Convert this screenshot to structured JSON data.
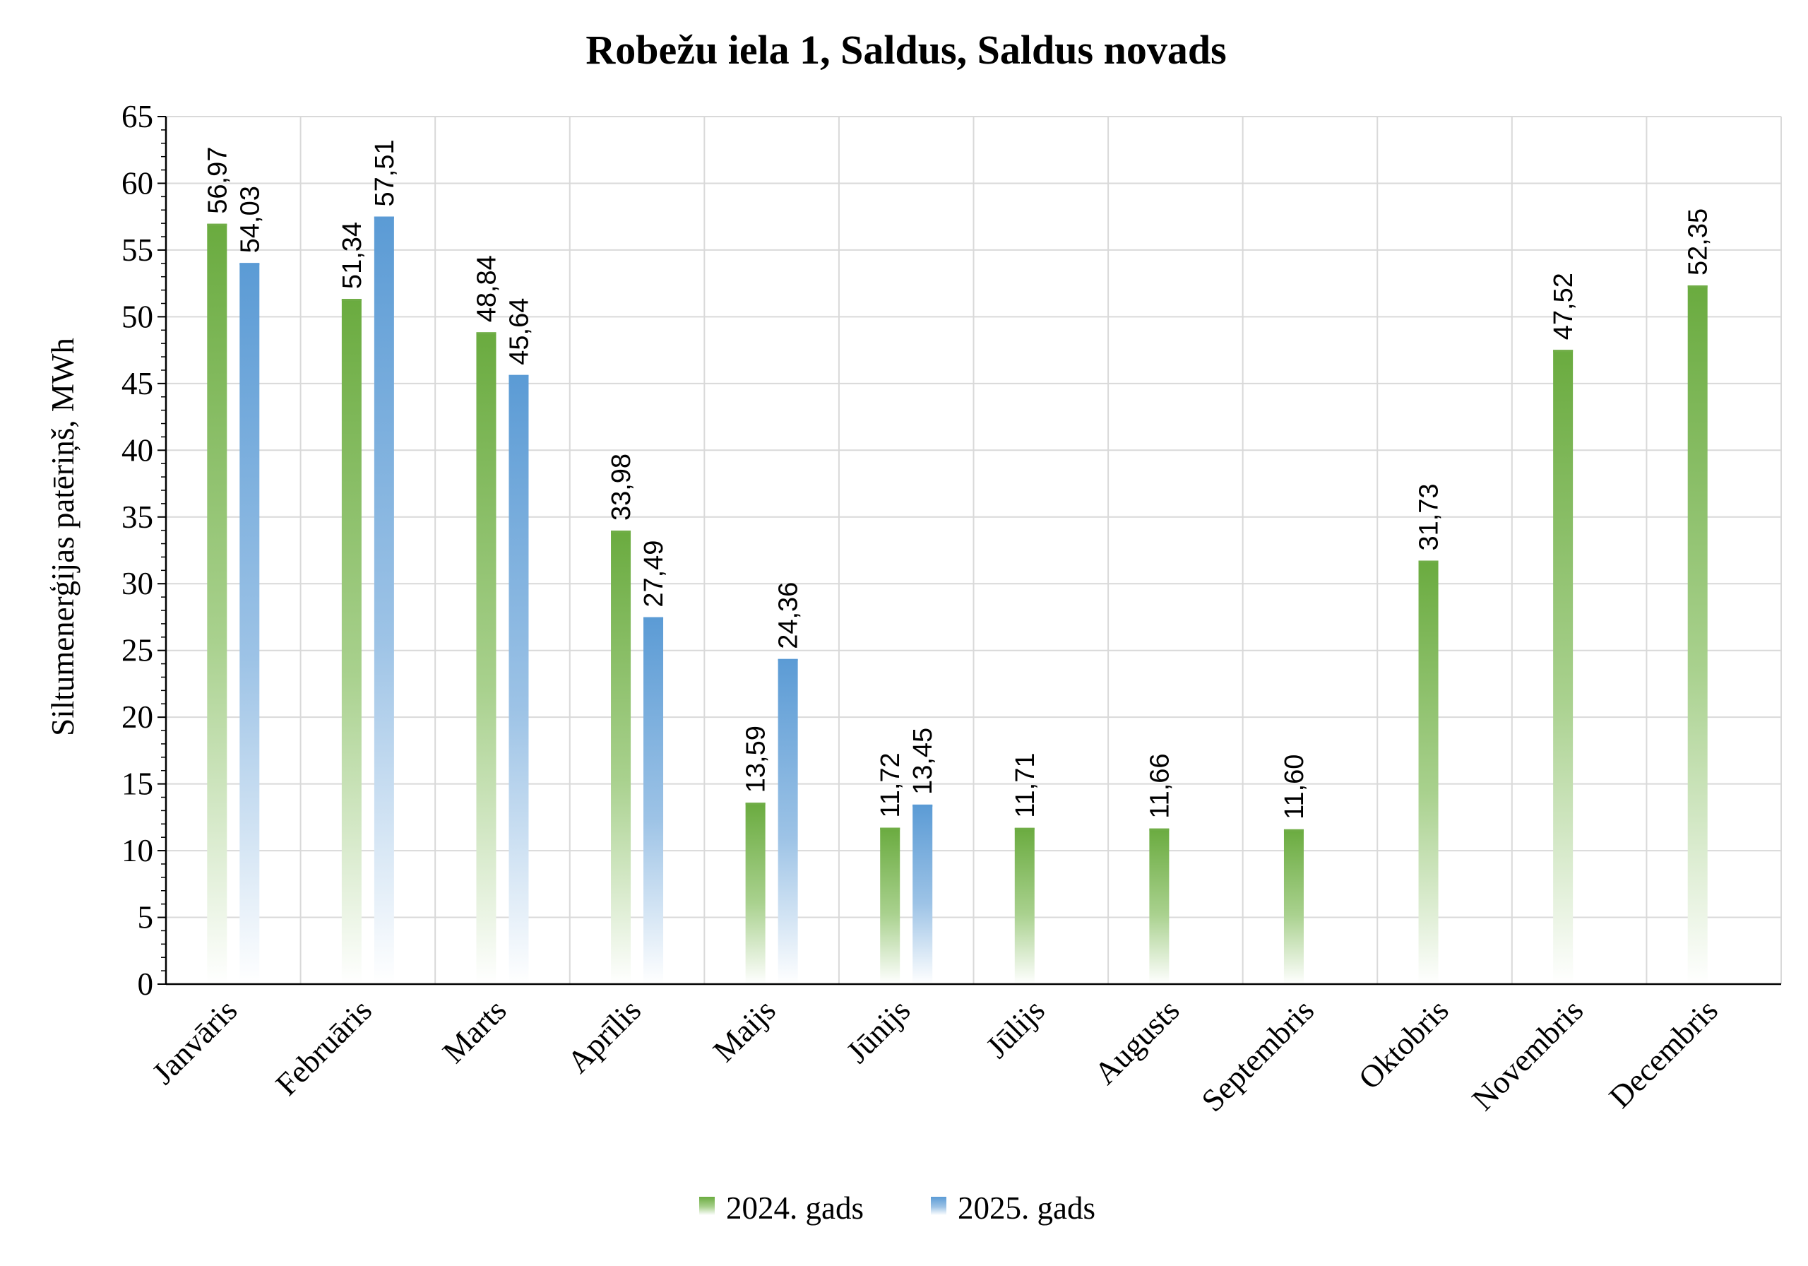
{
  "chart_data": {
    "type": "bar",
    "title": "Robežu iela 1, Saldus, Saldus novads",
    "ylabel": "Siltumenerģijas patēriņš, MWh",
    "xlabel": "",
    "ylim": [
      0,
      65
    ],
    "ytick_step": 5,
    "grid": true,
    "legend_position": "bottom-center",
    "categories": [
      "Janvāris",
      "Februāris",
      "Marts",
      "Aprīlis",
      "Maijs",
      "Jūnijs",
      "Jūlijs",
      "Augusts",
      "Septembris",
      "Oktobris",
      "Novembris",
      "Decembris"
    ],
    "series": [
      {
        "name": "2024. gads",
        "color": "#70ad47",
        "values": [
          56.97,
          51.34,
          48.84,
          33.98,
          13.59,
          11.72,
          11.71,
          11.66,
          11.6,
          31.73,
          47.52,
          52.35
        ],
        "labels": [
          "56,97",
          "51,34",
          "48,84",
          "33,98",
          "13,59",
          "11,72",
          "11,71",
          "11,66",
          "11,60",
          "31,73",
          "47,52",
          "52,35"
        ]
      },
      {
        "name": "2025. gads",
        "color": "#5b9bd5",
        "values": [
          54.03,
          57.51,
          45.64,
          27.49,
          24.36,
          13.45,
          null,
          null,
          null,
          null,
          null,
          null
        ],
        "labels": [
          "54,03",
          "57,51",
          "45,64",
          "27,49",
          "24,36",
          "13,45",
          null,
          null,
          null,
          null,
          null,
          null
        ]
      }
    ]
  }
}
